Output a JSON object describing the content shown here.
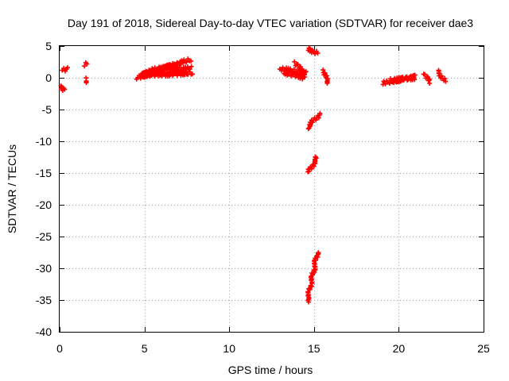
{
  "chart_data": {
    "type": "scatter",
    "title": "Day 191 of 2018, Sidereal Day-to-day VTEC variation (SDTVAR) for receiver dae3",
    "xlabel": "GPS time / hours",
    "ylabel": "SDTVAR / TECUs",
    "xlim": [
      0,
      25
    ],
    "ylim": [
      -40,
      5
    ],
    "x_ticks": [
      "0",
      "5",
      "10",
      "15",
      "20",
      "25"
    ],
    "y_ticks": [
      "5",
      "0",
      "-5",
      "-10",
      "-15",
      "-20",
      "-25",
      "-30",
      "-35",
      "-40"
    ],
    "grid": true,
    "marker": "plus",
    "color": "#ff0000",
    "segments": [
      {
        "x": [
          0.15,
          0.4
        ],
        "y": [
          1.2,
          1.4
        ]
      },
      {
        "x": [
          0.05,
          0.35
        ],
        "y": [
          -1.4,
          -1.9
        ]
      },
      {
        "x": [
          1.5,
          1.6
        ],
        "y": [
          2.1,
          2.2
        ]
      },
      {
        "x": [
          1.5,
          1.6
        ],
        "y": [
          -0.3,
          -0.8
        ]
      },
      {
        "x": [
          4.6,
          6.0
        ],
        "y": [
          0.0,
          1.3
        ]
      },
      {
        "x": [
          4.8,
          6.5
        ],
        "y": [
          0.6,
          1.7
        ]
      },
      {
        "x": [
          5.2,
          7.0
        ],
        "y": [
          0.9,
          2.0
        ]
      },
      {
        "x": [
          4.7,
          7.2
        ],
        "y": [
          0.2,
          1.0
        ]
      },
      {
        "x": [
          5.5,
          7.7
        ],
        "y": [
          1.2,
          2.8
        ]
      },
      {
        "x": [
          6.0,
          7.8
        ],
        "y": [
          0.5,
          0.7
        ]
      },
      {
        "x": [
          6.5,
          7.8
        ],
        "y": [
          1.2,
          1.5
        ]
      },
      {
        "x": [
          13.0,
          14.6
        ],
        "y": [
          1.4,
          0.8
        ]
      },
      {
        "x": [
          13.2,
          14.5
        ],
        "y": [
          0.8,
          0.0
        ]
      },
      {
        "x": [
          13.9,
          14.5
        ],
        "y": [
          2.3,
          0.4
        ]
      },
      {
        "x": [
          14.6,
          15.2
        ],
        "y": [
          4.6,
          3.9
        ]
      },
      {
        "x": [
          15.6,
          15.8
        ],
        "y": [
          1.0,
          -0.9
        ]
      },
      {
        "x": [
          14.6,
          15.3
        ],
        "y": [
          -7.9,
          -5.8
        ]
      },
      {
        "x": [
          14.7,
          15.2
        ],
        "y": [
          -14.8,
          -12.4
        ]
      },
      {
        "x": [
          14.6,
          15.2
        ],
        "y": [
          -35.2,
          -27.5
        ]
      },
      {
        "x": [
          19.1,
          20.2
        ],
        "y": [
          -0.8,
          -0.4
        ]
      },
      {
        "x": [
          19.5,
          21.0
        ],
        "y": [
          -0.4,
          0.0
        ]
      },
      {
        "x": [
          20.0,
          21.0
        ],
        "y": [
          -0.3,
          0.3
        ]
      },
      {
        "x": [
          21.5,
          21.8
        ],
        "y": [
          0.5,
          -0.6
        ]
      },
      {
        "x": [
          22.3,
          22.7
        ],
        "y": [
          1.1,
          -0.5
        ]
      }
    ]
  }
}
